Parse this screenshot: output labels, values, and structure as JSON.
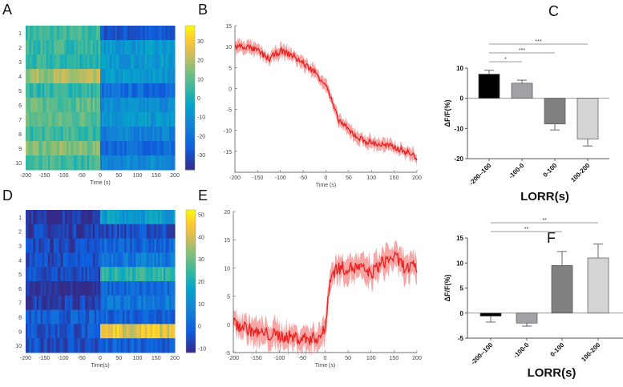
{
  "panels": {
    "A": "A",
    "B": "B",
    "C": "C",
    "D": "D",
    "E": "E",
    "F": "F"
  },
  "chart_data": [
    {
      "id": "A",
      "type": "heatmap",
      "xlabel": "Time (s)",
      "xticks": [
        -200,
        -150,
        -100,
        -50,
        0,
        50,
        100,
        150,
        200
      ],
      "rows": [
        "1",
        "2",
        "3",
        "4",
        "5",
        "6",
        "7",
        "8",
        "9",
        "10"
      ],
      "colorbar_ticks": [
        30,
        20,
        10,
        0,
        -10,
        -20,
        -30
      ],
      "clim": [
        -38,
        38
      ],
      "row_mean_pre": [
        5,
        5,
        3,
        18,
        4,
        10,
        10,
        5,
        14,
        5
      ],
      "row_mean_post": [
        -28,
        -8,
        -8,
        -8,
        -22,
        -12,
        -8,
        -15,
        -22,
        -12
      ]
    },
    {
      "id": "B",
      "type": "line",
      "xlabel": "Time (s)",
      "xlim": [
        -200,
        200
      ],
      "ylim": [
        -20,
        15
      ],
      "xticks": [
        -200,
        -150,
        -100,
        -50,
        0,
        50,
        100,
        150,
        200
      ],
      "yticks": [
        15,
        10,
        5,
        0,
        -5,
        -10,
        -15
      ],
      "color": "#e8201f",
      "x": [
        -200,
        -175,
        -150,
        -125,
        -100,
        -75,
        -50,
        -25,
        0,
        25,
        50,
        75,
        100,
        125,
        150,
        175,
        200
      ],
      "y": [
        10,
        10,
        9,
        7,
        9,
        8,
        6,
        4,
        1,
        -7,
        -10,
        -12,
        -13,
        -13.5,
        -14,
        -15,
        -16.5
      ],
      "sem": 1.3
    },
    {
      "id": "C",
      "type": "bar",
      "xlabel": "LORR(s)",
      "ylabel": "ΔF/F(%)",
      "ylim": [
        -20,
        10
      ],
      "yticks": [
        10,
        0,
        -10,
        -20
      ],
      "categories": [
        "-200--100",
        "-100-0",
        "0-100",
        "100-200"
      ],
      "values": [
        8,
        5,
        -8.5,
        -13.5
      ],
      "errors": [
        1.3,
        1,
        2,
        2.3
      ],
      "colors": [
        "#000000",
        "#a2a2a6",
        "#808080",
        "#d4d4d4"
      ],
      "significance": [
        {
          "a": 0,
          "b": 1,
          "label": "*"
        },
        {
          "a": 0,
          "b": 2,
          "label": "***"
        },
        {
          "a": 0,
          "b": 3,
          "label": "***"
        }
      ]
    },
    {
      "id": "D",
      "type": "heatmap",
      "xlabel": "Time(s)",
      "xticks": [
        -200,
        -150,
        -100,
        -50,
        0,
        50,
        100,
        150,
        200
      ],
      "rows": [
        "1",
        "2",
        "3",
        "4",
        "5",
        "6",
        "7",
        "8",
        "9",
        "10"
      ],
      "colorbar_ticks": [
        50,
        40,
        30,
        20,
        10,
        0,
        -10
      ],
      "clim": [
        -12,
        52
      ],
      "row_mean_pre": [
        -10,
        -8,
        -6,
        -5,
        -5,
        -12,
        -8,
        -2,
        -4,
        -5
      ],
      "row_mean_post": [
        15,
        -5,
        0,
        5,
        22,
        0,
        5,
        0,
        40,
        -2
      ]
    },
    {
      "id": "E",
      "type": "line",
      "xlabel": "Time (s)",
      "xlim": [
        -200,
        200
      ],
      "ylim": [
        -5,
        20
      ],
      "xticks": [
        -200,
        -150,
        -100,
        -50,
        0,
        50,
        100,
        150,
        200
      ],
      "yticks": [
        20,
        15,
        10,
        5,
        0,
        -5
      ],
      "color": "#e8201f",
      "x": [
        -200,
        -175,
        -150,
        -125,
        -100,
        -75,
        -50,
        -25,
        -10,
        0,
        10,
        25,
        50,
        75,
        100,
        125,
        150,
        175,
        200
      ],
      "y": [
        0,
        -0.5,
        -1.5,
        -1.8,
        -2,
        -2.3,
        -2.5,
        -2.5,
        -2,
        -1,
        8,
        10,
        10,
        10,
        9,
        11,
        12,
        10,
        10
      ],
      "sem": 2
    },
    {
      "id": "F",
      "type": "bar",
      "xlabel": "LORR(s)",
      "ylabel": "ΔF/F(%)",
      "ylim": [
        -5,
        15
      ],
      "yticks": [
        15,
        10,
        5,
        0,
        -5
      ],
      "categories": [
        "-200--100",
        "-100-0",
        "0-100",
        "100-200"
      ],
      "values": [
        -0.6,
        -2,
        9.5,
        11
      ],
      "errors": [
        1.2,
        0.6,
        2.8,
        2.8
      ],
      "colors": [
        "#000000",
        "#a2a2a6",
        "#808080",
        "#d4d4d4"
      ],
      "significance": [
        {
          "a": 0,
          "b": 2,
          "label": "**"
        },
        {
          "a": 0,
          "b": 3,
          "label": "**"
        }
      ]
    }
  ]
}
